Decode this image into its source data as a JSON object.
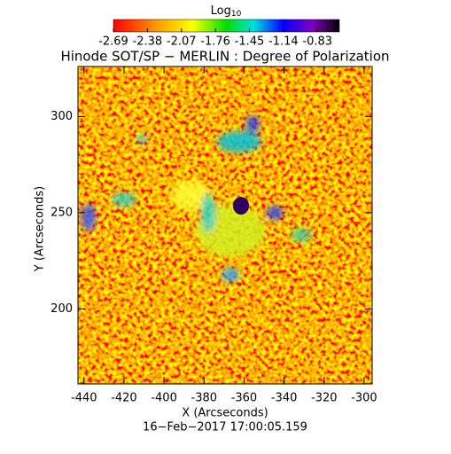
{
  "chart_data": {
    "type": "image",
    "title": "Hinode SOT/SP − MERLIN : Degree of Polarization",
    "x_label": "X (Arcseconds)",
    "y_label": "Y (Arcseconds)",
    "date": "16−Feb−2017 17:00:05.159",
    "xlim": [
      -443,
      -296
    ],
    "xticks": [
      -440,
      -420,
      -400,
      -380,
      -360,
      -340,
      -320,
      -300
    ],
    "ylim": [
      161,
      326
    ],
    "yticks": [
      200,
      250,
      300
    ],
    "colorbar_label": "Log",
    "colorbar_label_sub": "10",
    "colorbar_lim": [
      -2.69,
      -0.63
    ],
    "colorbar_ticks": [
      -2.69,
      -2.38,
      -2.07,
      -1.76,
      -1.45,
      -1.14,
      -0.83
    ]
  }
}
